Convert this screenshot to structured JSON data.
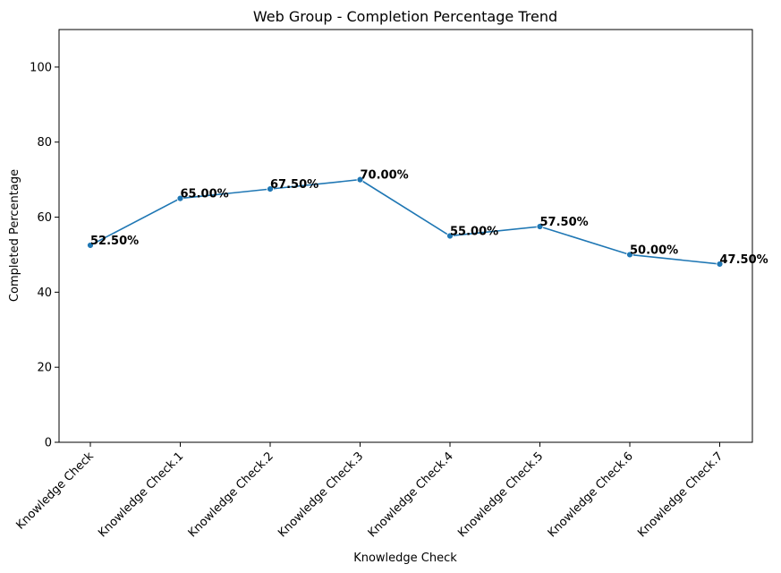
{
  "chart_data": {
    "type": "line",
    "title": "Web Group - Completion Percentage Trend",
    "xlabel": "Knowledge Check",
    "ylabel": "Completed Percentage",
    "categories": [
      "Knowledge Check",
      "Knowledge Check.1",
      "Knowledge Check.2",
      "Knowledge Check.3",
      "Knowledge Check.4",
      "Knowledge Check.5",
      "Knowledge Check.6",
      "Knowledge Check.7"
    ],
    "values": [
      52.5,
      65.0,
      67.5,
      70.0,
      55.0,
      57.5,
      50.0,
      47.5
    ],
    "data_labels": [
      "52.50%",
      "65.00%",
      "67.50%",
      "70.00%",
      "55.00%",
      "57.50%",
      "50.00%",
      "47.50%"
    ],
    "yticks": [
      0,
      20,
      40,
      60,
      80,
      100
    ],
    "ylim": [
      0,
      110
    ],
    "grid": false,
    "legend": "none",
    "line_color": "#1f77b4"
  }
}
